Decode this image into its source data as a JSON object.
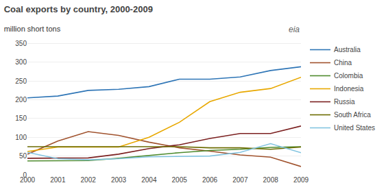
{
  "chart_data": {
    "type": "line",
    "title": "Coal exports by country, 2000-2009",
    "subtitle": "million short tons",
    "annotations": [
      "eia"
    ],
    "x": [
      2000,
      2001,
      2002,
      2003,
      2004,
      2005,
      2006,
      2007,
      2008,
      2009
    ],
    "xlim": [
      2000,
      2009
    ],
    "xticks": [
      2000,
      2001,
      2002,
      2003,
      2004,
      2005,
      2006,
      2007,
      2008,
      2009
    ],
    "series": [
      {
        "name": "Australia",
        "color": "#2e75b6",
        "values": [
          205,
          210,
          225,
          228,
          235,
          255,
          255,
          261,
          278,
          288
        ]
      },
      {
        "name": "China",
        "color": "#a0522d",
        "values": [
          55,
          90,
          115,
          105,
          87,
          72,
          63,
          53,
          47,
          22
        ]
      },
      {
        "name": "Colombia",
        "color": "#4e8b2e",
        "values": [
          37,
          37,
          38,
          44,
          52,
          59,
          65,
          68,
          73,
          75
        ]
      },
      {
        "name": "Indonesia",
        "color": "#e8a800",
        "values": [
          62,
          74,
          74,
          74,
          100,
          140,
          195,
          220,
          230,
          260
        ]
      },
      {
        "name": "Russia",
        "color": "#7b2020",
        "values": [
          44,
          44,
          45,
          55,
          70,
          80,
          97,
          110,
          110,
          130
        ]
      },
      {
        "name": "South Africa",
        "color": "#6b6b00",
        "values": [
          75,
          75,
          75,
          76,
          75,
          75,
          72,
          72,
          68,
          74
        ]
      },
      {
        "name": "United States",
        "color": "#82c4e0",
        "values": [
          60,
          43,
          40,
          43,
          48,
          49,
          50,
          60,
          83,
          59
        ]
      }
    ],
    "ylim": [
      0,
      360
    ],
    "yticks": [
      0,
      50,
      100,
      150,
      200,
      250,
      300,
      350
    ],
    "grid": true,
    "legend": "right"
  }
}
